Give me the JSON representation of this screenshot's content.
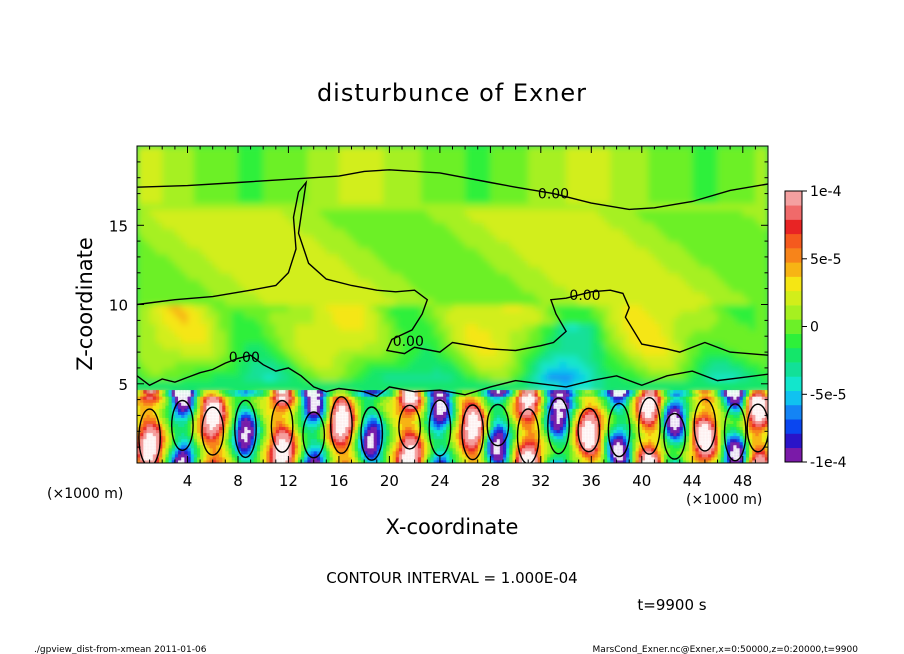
{
  "chart_data": {
    "type": "heatmap",
    "title": "disturbunce of Exner",
    "xlabel": "X-coordinate",
    "ylabel": "Z-coordinate",
    "x_unit": "(×1000 m)",
    "y_unit": "(×1000 m)",
    "xlim": [
      0,
      50
    ],
    "ylim": [
      0,
      20
    ],
    "x_ticks": [
      4,
      8,
      12,
      16,
      20,
      24,
      28,
      32,
      36,
      40,
      44,
      48
    ],
    "y_ticks": [
      5,
      10,
      15
    ],
    "colorbar": {
      "range": [
        -0.0001,
        0.0001
      ],
      "ticks": [
        {
          "value": 0.0001,
          "label": "1e-4"
        },
        {
          "value": 5e-05,
          "label": "5e-5"
        },
        {
          "value": 0,
          "label": "0"
        },
        {
          "value": -5e-05,
          "label": "-5e-5"
        },
        {
          "value": -0.0001,
          "label": "-1e-4"
        }
      ],
      "colors": [
        "#7a1aa8",
        "#2a14c8",
        "#0a46f0",
        "#1484f5",
        "#10c2f0",
        "#12e6cc",
        "#12e098",
        "#14e66a",
        "#2ef03a",
        "#6cf028",
        "#a6f020",
        "#d2ee1a",
        "#f5e614",
        "#f7b414",
        "#f7841a",
        "#f55a1e",
        "#e82424",
        "#f06a6a",
        "#f4a0a0"
      ]
    },
    "contour_labels": [
      {
        "x": 33,
        "y": 17.0,
        "text": "0.00"
      },
      {
        "x": 35.5,
        "y": 10.6,
        "text": "0.00"
      },
      {
        "x": 21.5,
        "y": 7.7,
        "text": "0.00"
      },
      {
        "x": 8.5,
        "y": 6.7,
        "text": "0.00"
      }
    ],
    "contour_interval": "CONTOUR INTERVAL = 1.000E-04",
    "time_label": "t=9900 s"
  },
  "footer": {
    "left": "./gpview_dist-from-xmean  2011-01-06",
    "right": "MarsCond_Exner.nc@Exner,x=0:50000,z=0:20000,t=9900"
  }
}
